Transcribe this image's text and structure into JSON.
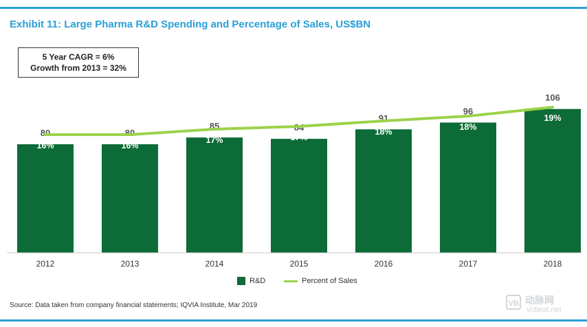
{
  "title": "Exhibit 11: Large Pharma R&D Spending and Percentage of Sales, US$BN",
  "annotation": {
    "line1": "5 Year CAGR = 6%",
    "line2": "Growth from 2013 = 32%"
  },
  "source": "Source: Data taken from company financial statements; IQVIA Institute, Mar 2019",
  "watermark": {
    "logo": "VB",
    "text": "动脉网",
    "url": "vcbeat.net"
  },
  "colors": {
    "bar": "#0c6b36",
    "line": "#9bd34a",
    "accent": "#2a9fd6"
  },
  "chart_data": {
    "type": "bar",
    "categories": [
      "2012",
      "2013",
      "2014",
      "2015",
      "2016",
      "2017",
      "2018"
    ],
    "series": [
      {
        "name": "R&D",
        "type": "bar",
        "values": [
          80,
          80,
          85,
          84,
          91,
          96,
          106
        ],
        "labels": [
          "80",
          "80",
          "85",
          "84",
          "91",
          "96",
          "106"
        ]
      },
      {
        "name": "Percent of Sales",
        "type": "line",
        "values": [
          16,
          16,
          17,
          17,
          18,
          18,
          19
        ],
        "labels": [
          "16%",
          "16%",
          "17%",
          "17%",
          "18%",
          "18%",
          "19%"
        ]
      }
    ],
    "legend": "bottom-center",
    "grid": false
  }
}
